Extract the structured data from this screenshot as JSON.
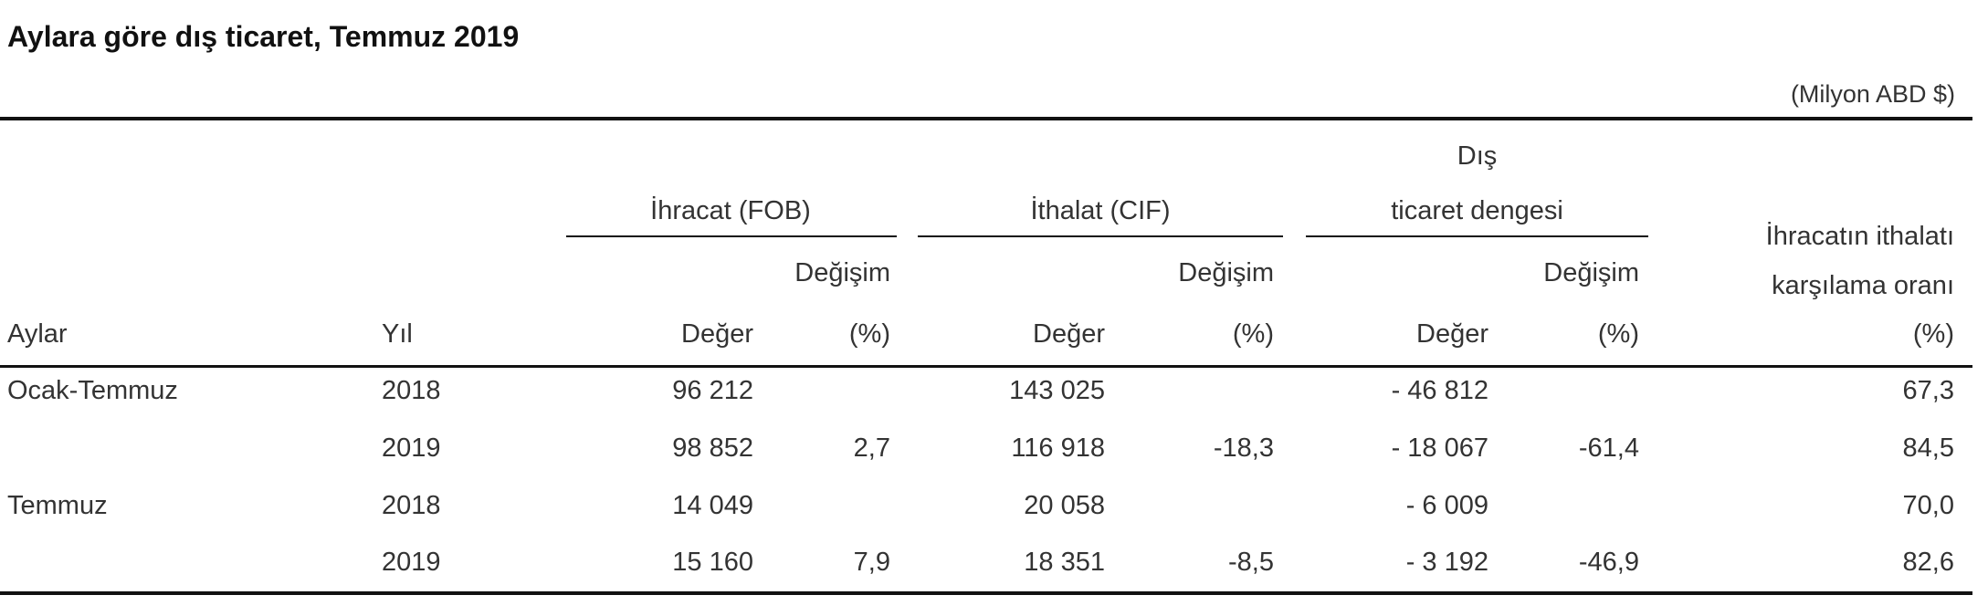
{
  "title": "Aylara göre dış ticaret, Temmuz 2019",
  "unit": "(Milyon ABD $)",
  "headers": {
    "ihracat": "İhracat (FOB)",
    "ithalat": "İthalat (CIF)",
    "denge_line1": "Dış",
    "denge_line2": "ticaret dengesi",
    "oran_line1": "İhracatın ithalatı",
    "oran_line2": "karşılama oranı",
    "oran_unit": "(%)",
    "degisim": "Değişim",
    "deger": "Değer",
    "pct": "(%)",
    "aylar": "Aylar",
    "yil": "Yıl"
  },
  "rows": [
    {
      "period": "Ocak-Temmuz",
      "year": "2018",
      "ihr_val": "96 212",
      "ihr_chg": "",
      "ith_val": "143 025",
      "ith_chg": "",
      "den_val": "- 46 812",
      "den_chg": "",
      "ratio": "67,3"
    },
    {
      "period": "",
      "year": "2019",
      "ihr_val": "98 852",
      "ihr_chg": "2,7",
      "ith_val": "116 918",
      "ith_chg": "-18,3",
      "den_val": "- 18 067",
      "den_chg": "-61,4",
      "ratio": "84,5"
    },
    {
      "period": "Temmuz",
      "year": "2018",
      "ihr_val": "14 049",
      "ihr_chg": "",
      "ith_val": "20 058",
      "ith_chg": "",
      "den_val": "- 6 009",
      "den_chg": "",
      "ratio": "70,0"
    },
    {
      "period": "",
      "year": "2019",
      "ihr_val": "15 160",
      "ihr_chg": "7,9",
      "ith_val": "18 351",
      "ith_chg": "-8,5",
      "den_val": "- 3 192",
      "den_chg": "-46,9",
      "ratio": "82,6"
    }
  ]
}
